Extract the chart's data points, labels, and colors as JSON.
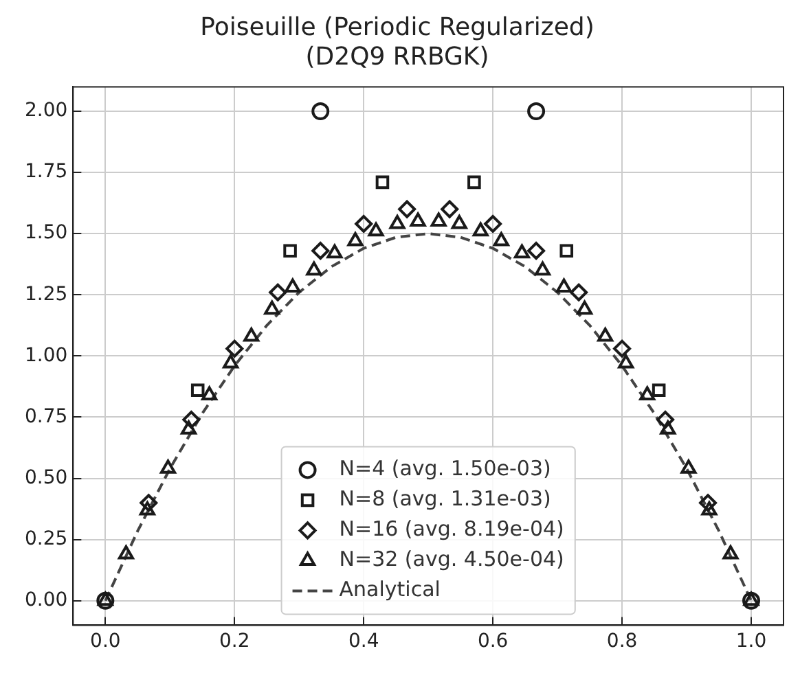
{
  "chart_data": {
    "type": "scatter",
    "title": "Poiseuille (Periodic Regularized)\n(D2Q9 RRBGK)",
    "xlim": [
      -0.05,
      1.05
    ],
    "xticks": [
      {
        "value": 0,
        "label": "0.0"
      },
      {
        "value": 0.2,
        "label": "0.2"
      },
      {
        "value": 0.4,
        "label": "0.4"
      },
      {
        "value": 0.6,
        "label": "0.6"
      },
      {
        "value": 0.8,
        "label": "0.8"
      },
      {
        "value": 1,
        "label": "1.0"
      }
    ],
    "ylim": [
      -0.1,
      2.1
    ],
    "yticks": [
      {
        "value": 0,
        "label": "0.00"
      },
      {
        "value": 0.25,
        "label": "0.25"
      },
      {
        "value": 0.5,
        "label": "0.50"
      },
      {
        "value": 0.75,
        "label": "0.75"
      },
      {
        "value": 1,
        "label": "1.00"
      },
      {
        "value": 1.25,
        "label": "1.25"
      },
      {
        "value": 1.5,
        "label": "1.50"
      },
      {
        "value": 1.75,
        "label": "1.75"
      },
      {
        "value": 2,
        "label": "2.00"
      }
    ],
    "grid": true,
    "legend": "bottom",
    "series": [
      {
        "name": "N=4 (avg. 1.50e-03)",
        "color": "#1a1a1a",
        "marker": "circle",
        "x": [
          0,
          0.333,
          0.667,
          1
        ],
        "values": [
          0,
          2,
          2,
          0
        ]
      },
      {
        "name": "N=8 (avg. 1.31e-03)",
        "color": "#1a1a1a",
        "marker": "square",
        "x": [
          0.143,
          0.286,
          0.429,
          0.571,
          0.714,
          0.857
        ],
        "values": [
          0.86,
          1.43,
          1.71,
          1.71,
          1.43,
          0.86
        ]
      },
      {
        "name": "N=16 (avg. 8.19e-04)",
        "color": "#1a1a1a",
        "marker": "diamond",
        "x": [
          0.067,
          0.133,
          0.2,
          0.267,
          0.333,
          0.4,
          0.467,
          0.533,
          0.6,
          0.667,
          0.733,
          0.8,
          0.867,
          0.933
        ],
        "values": [
          0.4,
          0.74,
          1.03,
          1.26,
          1.43,
          1.54,
          1.6,
          1.6,
          1.54,
          1.43,
          1.26,
          1.03,
          0.74,
          0.4
        ]
      },
      {
        "name": "N=32 (avg. 4.50e-04)",
        "color": "#1a1a1a",
        "marker": "triangle",
        "x": [
          0,
          0.032,
          0.065,
          0.097,
          0.129,
          0.161,
          0.194,
          0.226,
          0.258,
          0.29,
          0.323,
          0.355,
          0.387,
          0.419,
          0.452,
          0.484,
          0.516,
          0.548,
          0.581,
          0.613,
          0.645,
          0.677,
          0.71,
          0.742,
          0.774,
          0.806,
          0.839,
          0.871,
          0.903,
          0.935,
          0.968,
          1
        ],
        "values": [
          0,
          0.19,
          0.37,
          0.54,
          0.7,
          0.84,
          0.97,
          1.08,
          1.19,
          1.28,
          1.35,
          1.42,
          1.47,
          1.51,
          1.54,
          1.55,
          1.55,
          1.54,
          1.51,
          1.47,
          1.42,
          1.35,
          1.28,
          1.19,
          1.08,
          0.97,
          0.84,
          0.7,
          0.54,
          0.37,
          0.19,
          0
        ]
      },
      {
        "name": "Analytical",
        "type": "line",
        "color": "#444444",
        "marker": "none",
        "line_style": "dashed",
        "x": [
          0,
          0.05,
          0.1,
          0.15,
          0.2,
          0.25,
          0.3,
          0.35,
          0.4,
          0.45,
          0.5,
          0.55,
          0.6,
          0.65,
          0.7,
          0.75,
          0.8,
          0.85,
          0.9,
          0.95,
          1
        ],
        "values": [
          0,
          0.285,
          0.54,
          0.765,
          0.96,
          1.125,
          1.26,
          1.365,
          1.44,
          1.485,
          1.5,
          1.485,
          1.44,
          1.365,
          1.26,
          1.125,
          0.96,
          0.765,
          0.54,
          0.285,
          0
        ]
      }
    ]
  }
}
